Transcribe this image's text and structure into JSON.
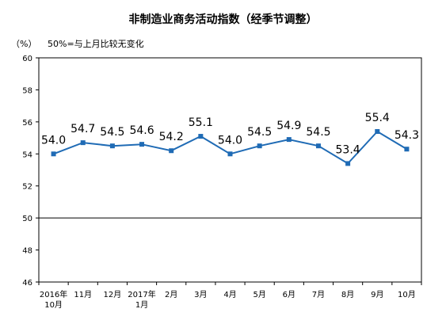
{
  "title": "非制造业商务活动指数（经季节调整）",
  "unit_label": "（%）",
  "note": "50%=与上月比较无变化",
  "chart_data": {
    "type": "line",
    "title": "非制造业商务活动指数（经季节调整）",
    "ylabel": "（%）",
    "ylim": [
      46,
      60
    ],
    "yticks": [
      46,
      48,
      50,
      52,
      54,
      56,
      58,
      60
    ],
    "reference_line": 50,
    "categories": [
      [
        "2016年",
        "10月"
      ],
      [
        "11月"
      ],
      [
        "12月"
      ],
      [
        "2017年",
        "1月"
      ],
      [
        "2月"
      ],
      [
        "3月"
      ],
      [
        "4月"
      ],
      [
        "5月"
      ],
      [
        "6月"
      ],
      [
        "7月"
      ],
      [
        "8月"
      ],
      [
        "9月"
      ],
      [
        "10月"
      ]
    ],
    "values": [
      54.0,
      54.7,
      54.5,
      54.6,
      54.2,
      55.1,
      54.0,
      54.5,
      54.9,
      54.5,
      53.4,
      55.4,
      54.3
    ],
    "labels": [
      "54.0",
      "54.7",
      "54.5",
      "54.6",
      "54.2",
      "55.1",
      "54.0",
      "54.5",
      "54.9",
      "54.5",
      "53.4",
      "55.4",
      "54.3"
    ],
    "line_color": "#1F6BB5",
    "grid": false
  }
}
